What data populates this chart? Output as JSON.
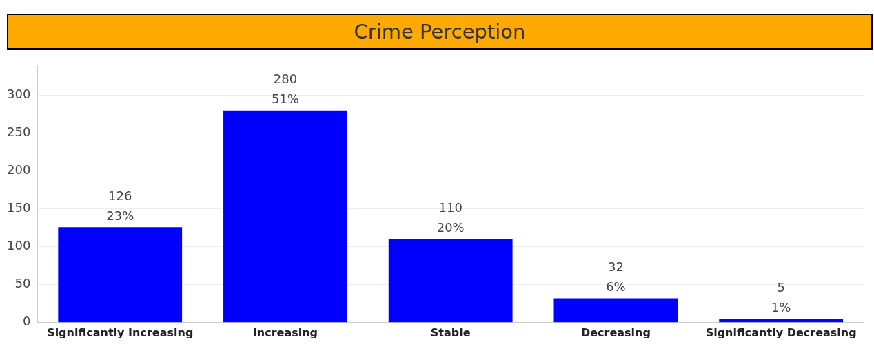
{
  "chart_data": {
    "type": "bar",
    "title": "Crime Perception",
    "categories": [
      "Significantly Increasing",
      "Increasing",
      "Stable",
      "Decreasing",
      "Significantly Decreasing"
    ],
    "values": [
      126,
      280,
      110,
      32,
      5
    ],
    "value_labels": [
      "126\n23%",
      "280\n51%",
      "110\n20%",
      "32\n6%",
      "5\n1%"
    ],
    "color": "#0000ff",
    "ylim": [
      0,
      340
    ],
    "yticks": [
      0,
      50,
      100,
      150,
      200,
      250,
      300
    ],
    "grid": "y"
  }
}
